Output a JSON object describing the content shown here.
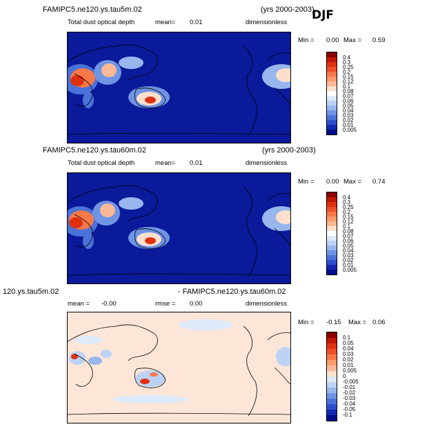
{
  "season": "DJF",
  "panels": [
    {
      "run_label": "FAMIPC5.ne120.ys.tau5m.02",
      "years": "(yrs 2000-2003)",
      "variable": "Total dust optical depth",
      "mean_label": "mean=",
      "mean_value": "0.01",
      "units": "dimensionless",
      "min_label": "Min =",
      "min_value": "0.00",
      "max_label": "Max =",
      "max_value": "0.59"
    },
    {
      "run_label": "FAMIPC5.ne120.ys.tau60m.02",
      "years": "(yrs 2000-2003)",
      "variable": "Total dust optical depth",
      "mean_label": "mean=",
      "mean_value": "0.01",
      "units": "dimensionless",
      "min_label": "Min =",
      "min_value": "0.00",
      "max_label": "Max =",
      "max_value": "0.74"
    },
    {
      "run_label": "120.ys.tau5m.02",
      "diff_label": "- FAMIPC5.ne120.ys.tau60m.02",
      "mean_label": "mean =",
      "mean_value": "-0.00",
      "rmse_label": "rmse =",
      "rmse_value": "0.00",
      "units": "dimensionless",
      "min_label": "Min =",
      "min_value": "-0.15",
      "max_label": "Max =",
      "max_value": "0.06"
    }
  ],
  "colorbars": {
    "abs_levels": [
      "0.4",
      "0.3",
      "0.25",
      "0.2",
      "0.15",
      "0.12",
      "0.1",
      "0.08",
      "0.07",
      "0.06",
      "0.05",
      "0.04",
      "0.03",
      "0.02",
      "0.01",
      "0.005"
    ],
    "abs_colors": [
      "#8b0000",
      "#c01800",
      "#e03010",
      "#f05028",
      "#f87848",
      "#fc9a6c",
      "#fdb896",
      "#fde0cc",
      "#ffffff",
      "#ddeafa",
      "#bcd2f4",
      "#98b6ee",
      "#6f94e4",
      "#4a72d8",
      "#2a4ecc",
      "#1028b0",
      "#000c8c"
    ],
    "diff_levels": [
      "0.1",
      "0.05",
      "0.04",
      "0.03",
      "0.02",
      "0.01",
      "0.005",
      "0",
      "-0.005",
      "-0.01",
      "-0.02",
      "-0.03",
      "-0.04",
      "-0.05",
      "-0.1"
    ],
    "diff_colors": [
      "#8b0000",
      "#c01800",
      "#e03010",
      "#f05028",
      "#f87848",
      "#fc9a6c",
      "#fdb896",
      "#fde0cc",
      "#dde8f6",
      "#bcd2f4",
      "#98b6ee",
      "#6f94e4",
      "#4a72d8",
      "#2a4ecc",
      "#1028b0",
      "#000c8c"
    ]
  },
  "chart_data": [
    {
      "type": "heatmap",
      "title": "FAMIPC5.ne120.ys.tau5m.02",
      "subtitle": "Total dust optical depth",
      "colorbar_levels": [
        0.4,
        0.3,
        0.25,
        0.2,
        0.15,
        0.12,
        0.1,
        0.08,
        0.07,
        0.06,
        0.05,
        0.04,
        0.03,
        0.02,
        0.01,
        0.005
      ],
      "mean": 0.01,
      "min": 0.0,
      "max": 0.59
    },
    {
      "type": "heatmap",
      "title": "FAMIPC5.ne120.ys.tau60m.02",
      "subtitle": "Total dust optical depth",
      "colorbar_levels": [
        0.4,
        0.3,
        0.25,
        0.2,
        0.15,
        0.12,
        0.1,
        0.08,
        0.07,
        0.06,
        0.05,
        0.04,
        0.03,
        0.02,
        0.01,
        0.005
      ],
      "mean": 0.01,
      "min": 0.0,
      "max": 0.74
    },
    {
      "type": "heatmap",
      "title": "120.ys.tau5m.02 - FAMIPC5.ne120.ys.tau60m.02",
      "colorbar_levels": [
        0.1,
        0.05,
        0.04,
        0.03,
        0.02,
        0.01,
        0.005,
        0,
        -0.005,
        -0.01,
        -0.02,
        -0.03,
        -0.04,
        -0.05,
        -0.1
      ],
      "mean": -0.0,
      "rmse": 0.0,
      "min": -0.15,
      "max": 0.06
    }
  ]
}
